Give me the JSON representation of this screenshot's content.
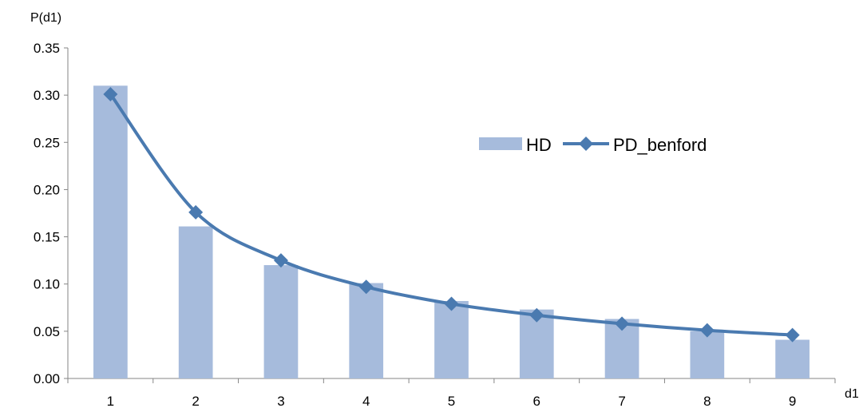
{
  "chart_data": {
    "type": "bar",
    "title": "",
    "xlabel": "d1",
    "ylabel": "P(d1)",
    "ylim": [
      0,
      0.35
    ],
    "yticks": [
      "0.00",
      "0.05",
      "0.10",
      "0.15",
      "0.20",
      "0.25",
      "0.30",
      "0.35"
    ],
    "categories": [
      "1",
      "2",
      "3",
      "4",
      "5",
      "6",
      "7",
      "8",
      "9"
    ],
    "series": [
      {
        "name": "HD",
        "kind": "bar",
        "color": "#a6bbdc",
        "values": [
          0.31,
          0.161,
          0.12,
          0.101,
          0.082,
          0.073,
          0.063,
          0.05,
          0.041
        ]
      },
      {
        "name": "PD_benford",
        "kind": "line",
        "marker": "diamond",
        "color": "#4a7ab0",
        "values": [
          0.301,
          0.176,
          0.125,
          0.097,
          0.079,
          0.067,
          0.058,
          0.051,
          0.046
        ]
      }
    ],
    "legend_position": "right",
    "grid": false
  }
}
